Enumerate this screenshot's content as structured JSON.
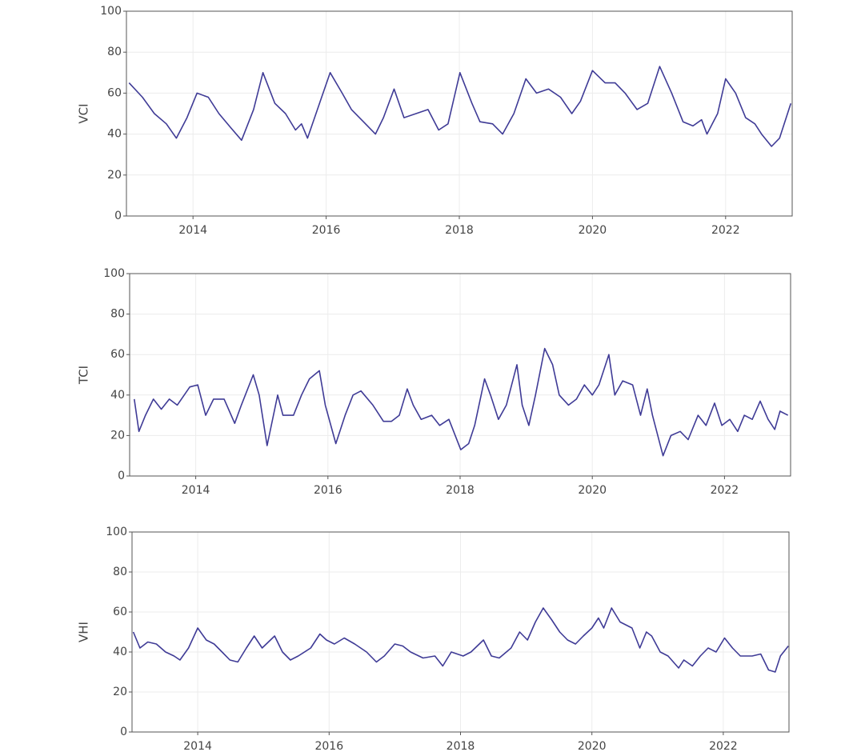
{
  "chart_data": [
    {
      "type": "line",
      "y_label": "VCI",
      "color": "#3f3b96",
      "grid": true,
      "xlim": [
        2013,
        2023
      ],
      "xticks": [
        2014,
        2016,
        2018,
        2020,
        2022
      ],
      "ylim": [
        0,
        100
      ],
      "yticks": [
        0,
        20,
        40,
        60,
        80,
        100
      ],
      "x": [
        2013.04,
        2013.24,
        2013.42,
        2013.6,
        2013.75,
        2013.91,
        2014.06,
        2014.23,
        2014.39,
        2014.57,
        2014.73,
        2014.91,
        2015.05,
        2015.23,
        2015.39,
        2015.54,
        2015.63,
        2015.72,
        2015.9,
        2016.06,
        2016.24,
        2016.38,
        2016.56,
        2016.74,
        2016.86,
        2017.02,
        2017.17,
        2017.35,
        2017.53,
        2017.69,
        2017.83,
        2018.01,
        2018.19,
        2018.31,
        2018.5,
        2018.65,
        2018.82,
        2019,
        2019.16,
        2019.34,
        2019.52,
        2019.69,
        2019.82,
        2020,
        2020.19,
        2020.34,
        2020.49,
        2020.67,
        2020.83,
        2021.01,
        2021.19,
        2021.36,
        2021.51,
        2021.64,
        2021.72,
        2021.88,
        2022,
        2022.15,
        2022.3,
        2022.44,
        2022.54,
        2022.69,
        2022.81,
        2022.98
      ],
      "values": [
        65,
        58,
        50,
        45,
        38,
        48,
        60,
        58,
        50,
        43,
        37,
        52,
        70,
        55,
        50,
        42,
        45,
        38,
        55,
        70,
        60,
        52,
        46,
        40,
        48,
        62,
        48,
        50,
        52,
        42,
        45,
        70,
        55,
        46,
        45,
        40,
        50,
        67,
        60,
        62,
        58,
        50,
        56,
        71,
        65,
        65,
        60,
        52,
        55,
        73,
        60,
        46,
        44,
        47,
        40,
        50,
        67,
        60,
        48,
        45,
        40,
        34,
        38,
        55
      ]
    },
    {
      "type": "line",
      "y_label": "TCI",
      "color": "#3f3b96",
      "grid": true,
      "xlim": [
        2013,
        2023
      ],
      "xticks": [
        2014,
        2016,
        2018,
        2020,
        2022
      ],
      "ylim": [
        0,
        100
      ],
      "yticks": [
        0,
        20,
        40,
        60,
        80,
        100
      ],
      "x": [
        2013.07,
        2013.14,
        2013.24,
        2013.36,
        2013.48,
        2013.6,
        2013.72,
        2013.91,
        2014.03,
        2014.15,
        2014.27,
        2014.43,
        2014.51,
        2014.59,
        2014.69,
        2014.87,
        2014.96,
        2015.08,
        2015.24,
        2015.32,
        2015.48,
        2015.6,
        2015.72,
        2015.87,
        2015.96,
        2016.12,
        2016.26,
        2016.38,
        2016.5,
        2016.68,
        2016.84,
        2016.96,
        2017.08,
        2017.2,
        2017.29,
        2017.41,
        2017.57,
        2017.69,
        2017.83,
        2018.01,
        2018.13,
        2018.22,
        2018.37,
        2018.46,
        2018.58,
        2018.7,
        2018.86,
        2018.94,
        2019.04,
        2019.14,
        2019.28,
        2019.4,
        2019.5,
        2019.64,
        2019.76,
        2019.88,
        2020,
        2020.1,
        2020.25,
        2020.34,
        2020.46,
        2020.61,
        2020.73,
        2020.83,
        2020.91,
        2021.07,
        2021.19,
        2021.33,
        2021.45,
        2021.6,
        2021.72,
        2021.85,
        2021.96,
        2022.08,
        2022.2,
        2022.3,
        2022.42,
        2022.54,
        2022.66,
        2022.76,
        2022.84,
        2022.96
      ],
      "values": [
        38,
        22,
        30,
        38,
        33,
        38,
        35,
        44,
        45,
        30,
        38,
        38,
        32,
        26,
        35,
        50,
        40,
        15,
        40,
        30,
        30,
        40,
        48,
        52,
        35,
        16,
        30,
        40,
        42,
        35,
        27,
        27,
        30,
        43,
        35,
        28,
        30,
        25,
        28,
        13,
        16,
        25,
        48,
        40,
        28,
        35,
        55,
        35,
        25,
        40,
        63,
        55,
        40,
        35,
        38,
        45,
        40,
        45,
        60,
        40,
        47,
        45,
        30,
        43,
        30,
        10,
        20,
        22,
        18,
        30,
        25,
        36,
        25,
        28,
        22,
        30,
        28,
        37,
        28,
        23,
        32,
        30
      ]
    },
    {
      "type": "line",
      "y_label": "VHI",
      "color": "#3f3b96",
      "grid": true,
      "xlim": [
        2013,
        2023
      ],
      "xticks": [
        2014,
        2016,
        2018,
        2020,
        2022
      ],
      "ylim": [
        0,
        100
      ],
      "yticks": [
        0,
        20,
        40,
        60,
        80,
        100
      ],
      "x": [
        2013.02,
        2013.12,
        2013.24,
        2013.37,
        2013.51,
        2013.64,
        2013.73,
        2013.86,
        2014,
        2014.13,
        2014.25,
        2014.37,
        2014.49,
        2014.61,
        2014.74,
        2014.86,
        2014.98,
        2015.17,
        2015.29,
        2015.41,
        2015.53,
        2015.72,
        2015.86,
        2015.96,
        2016.08,
        2016.23,
        2016.39,
        2016.57,
        2016.72,
        2016.84,
        2017,
        2017.12,
        2017.24,
        2017.43,
        2017.61,
        2017.73,
        2017.86,
        2018.04,
        2018.16,
        2018.35,
        2018.47,
        2018.59,
        2018.77,
        2018.9,
        2019.02,
        2019.14,
        2019.26,
        2019.39,
        2019.51,
        2019.63,
        2019.75,
        2019.87,
        2020,
        2020.1,
        2020.18,
        2020.3,
        2020.43,
        2020.61,
        2020.73,
        2020.83,
        2020.91,
        2021.04,
        2021.16,
        2021.32,
        2021.4,
        2021.53,
        2021.65,
        2021.77,
        2021.89,
        2022.02,
        2022.14,
        2022.26,
        2022.44,
        2022.57,
        2022.69,
        2022.79,
        2022.87,
        2022.99
      ],
      "values": [
        50,
        42,
        45,
        44,
        40,
        38,
        36,
        42,
        52,
        46,
        44,
        40,
        36,
        35,
        42,
        48,
        42,
        48,
        40,
        36,
        38,
        42,
        49,
        46,
        44,
        47,
        44,
        40,
        35,
        38,
        44,
        43,
        40,
        37,
        38,
        33,
        40,
        38,
        40,
        46,
        38,
        37,
        42,
        50,
        46,
        55,
        62,
        56,
        50,
        46,
        44,
        48,
        52,
        57,
        52,
        62,
        55,
        52,
        42,
        50,
        48,
        40,
        38,
        32,
        36,
        33,
        38,
        42,
        40,
        47,
        42,
        38,
        38,
        39,
        31,
        30,
        38,
        43
      ]
    }
  ]
}
